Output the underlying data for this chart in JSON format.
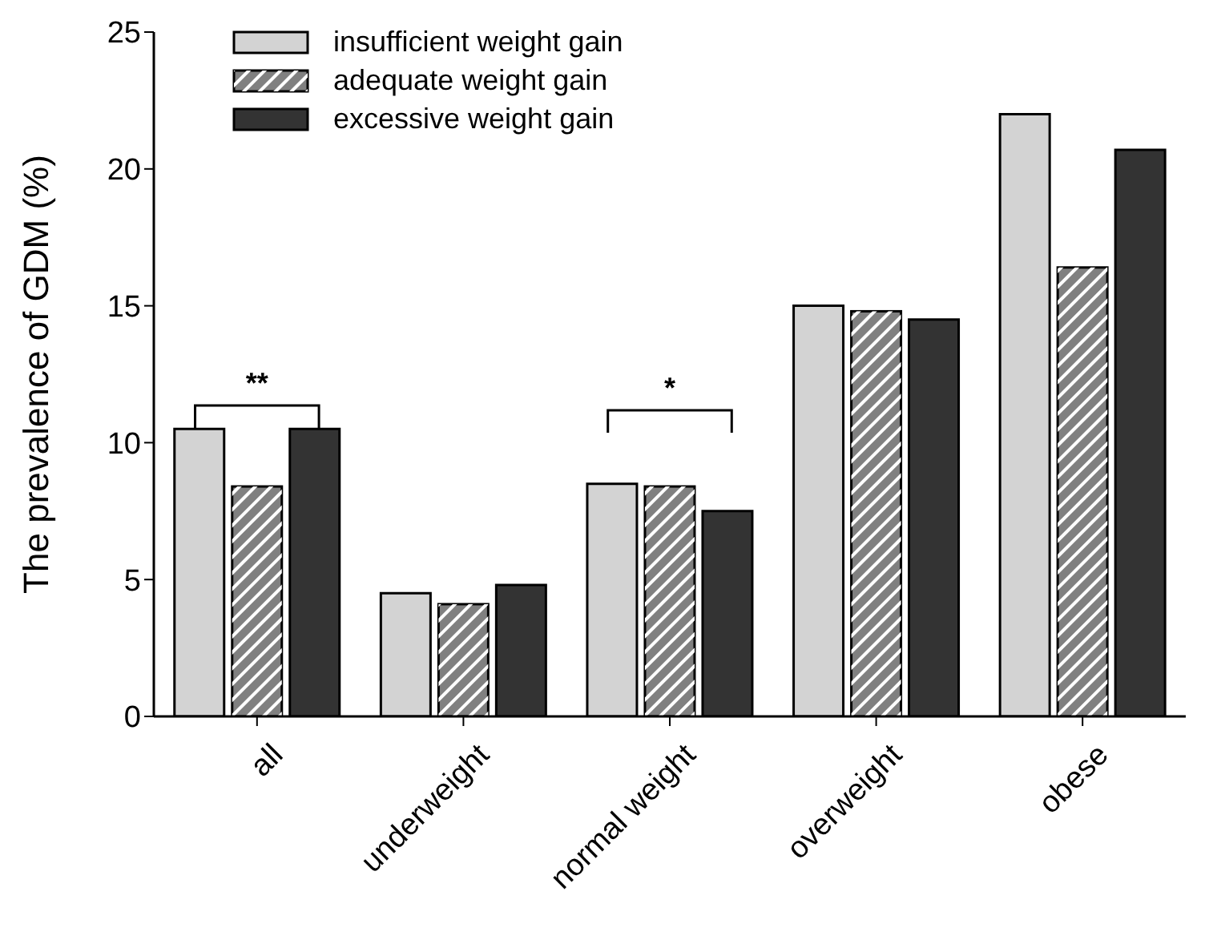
{
  "chart_data": {
    "type": "bar",
    "ylabel": "The prevalence of GDM (%)",
    "categories": [
      "all",
      "underweight",
      "normal weight",
      "overweight",
      "obese"
    ],
    "series": [
      {
        "name": "insufficient weight gain",
        "color": "#d3d3d3",
        "values": [
          10.5,
          4.5,
          8.5,
          15.0,
          22.0
        ]
      },
      {
        "name": "adequate weight gain",
        "color": "#808080",
        "values": [
          8.4,
          4.1,
          8.4,
          14.8,
          16.4
        ]
      },
      {
        "name": "excessive weight gain",
        "color": "#333333",
        "values": [
          10.5,
          4.8,
          7.5,
          14.5,
          20.7
        ]
      }
    ],
    "ylim": [
      0,
      25
    ],
    "yticks": [
      0,
      5,
      10,
      15,
      20,
      25
    ],
    "grid": false,
    "legend": "top left",
    "annotations": [
      "**",
      "*"
    ]
  }
}
